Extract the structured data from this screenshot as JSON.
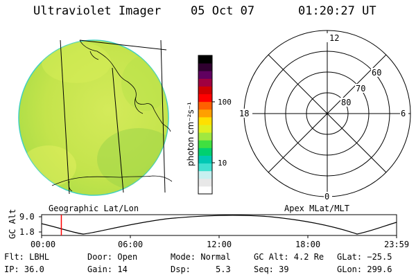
{
  "header": {
    "instrument": "Ultraviolet Imager",
    "date": "05 Oct 07",
    "time": "01:20:27 UT"
  },
  "colorbar": {
    "unit_label": "photon cm⁻²s⁻¹",
    "ticks": [
      "100",
      "10"
    ],
    "colors": [
      "#ffffff",
      "#e8e8e8",
      "#c8f0f0",
      "#40e0d0",
      "#00c8b4",
      "#00d070",
      "#40e040",
      "#a0e840",
      "#e0f020",
      "#ffe000",
      "#ffa000",
      "#ff6000",
      "#ff0000",
      "#d00000",
      "#a00040",
      "#600060",
      "#300030",
      "#000000"
    ]
  },
  "left_panel": {
    "label": "Geographic Lat/Lon",
    "fill_color": "#c8e650"
  },
  "right_panel": {
    "label": "Apex MLat/MLT",
    "mlt_labels": {
      "top": "12",
      "left": "18",
      "right": "6",
      "bottom": "0"
    },
    "lat_labels": [
      "60",
      "70",
      "80"
    ]
  },
  "altitude_strip": {
    "axis_label": "GC Alt",
    "ticks": [
      "9.0",
      "1.8"
    ],
    "time_ticks": [
      "00:00",
      "06:00",
      "12:00",
      "18:00",
      "23:59"
    ],
    "current_time_fraction": 0.0556,
    "marker_color": "#ff0000"
  },
  "status": {
    "flt": "Flt: LBHL",
    "ip": "IP: 36.0",
    "door": "Door: Open",
    "gain": "Gain: 14",
    "mode": "Mode: Normal",
    "dsp": "Dsp:     5.3",
    "gc_alt": "GC Alt: 4.2 Re",
    "seq": "Seq: 39",
    "glat": "GLat: −25.5",
    "glon": "GLon: 299.6"
  }
}
